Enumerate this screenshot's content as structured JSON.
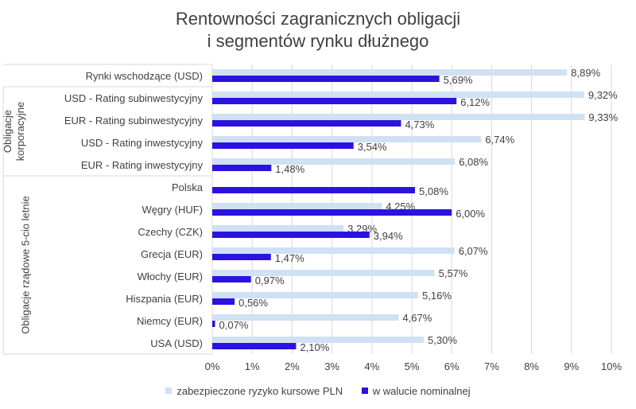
{
  "chart_data": {
    "type": "bar",
    "orientation": "horizontal",
    "title": "Rentowności zagranicznych obligacji",
    "subtitle": "i segmentów rynku dłużnego",
    "categories": [
      "Rynki wschodzące (USD)",
      "USD - Rating subinwestycyjny",
      "EUR - Rating subinwestycyjny",
      "USD - Rating inwestycyjny",
      "EUR - Rating inwestycyjny",
      "Polska",
      "Węgry (HUF)",
      "Czechy (CZK)",
      "Grecja (EUR)",
      "Włochy (EUR)",
      "Hiszpania (EUR)",
      "Niemcy (EUR)",
      "USA (USD)"
    ],
    "groups": [
      {
        "label": "Obligacje korporacyjne",
        "from": 1,
        "to": 4
      },
      {
        "label": "Obligacje rządowe 5-cio letnie",
        "from": 5,
        "to": 12
      }
    ],
    "series": [
      {
        "name": "zabezpieczone ryzyko kursowe PLN",
        "color": "#cfe1f3",
        "values": [
          8.89,
          9.32,
          9.33,
          6.74,
          6.08,
          null,
          4.25,
          3.29,
          6.07,
          5.57,
          5.16,
          4.67,
          5.3
        ],
        "labels": [
          "8,89%",
          "9,32%",
          "9,33%",
          "6,74%",
          "6,08%",
          "",
          "4,25%",
          "3,29%",
          "6,07%",
          "5,57%",
          "5,16%",
          "4,67%",
          "5,30%"
        ]
      },
      {
        "name": "w walucie nominalnej",
        "color": "#2b12e0",
        "values": [
          5.69,
          6.12,
          4.73,
          3.54,
          1.48,
          5.08,
          6.0,
          3.94,
          1.47,
          0.97,
          0.56,
          0.07,
          2.1
        ],
        "labels": [
          "5,69%",
          "6,12%",
          "4,73%",
          "3,54%",
          "1,48%",
          "5,08%",
          "6,00%",
          "3,94%",
          "1,47%",
          "0,97%",
          "0,56%",
          "0,07%",
          "2,10%"
        ]
      }
    ],
    "xlim": [
      0,
      10
    ],
    "x_ticks": [
      "0%",
      "1%",
      "2%",
      "3%",
      "4%",
      "5%",
      "6%",
      "7%",
      "8%",
      "9%",
      "10%"
    ],
    "grid": true,
    "legend_position": "bottom"
  }
}
